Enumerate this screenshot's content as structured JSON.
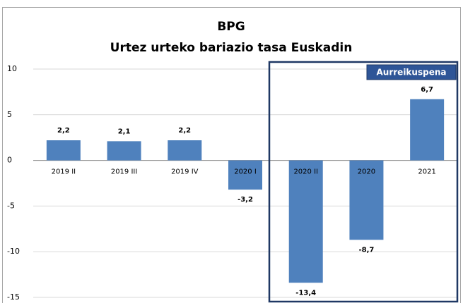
{
  "chart_data": {
    "type": "bar",
    "title": "BPG",
    "subtitle": "Urtez urteko bariazio tasa Euskadin",
    "categories": [
      "2019 II",
      "2019 III",
      "2019 IV",
      "2020 I",
      "2020 II",
      "2020",
      "2021"
    ],
    "values": [
      2.2,
      2.1,
      2.2,
      -3.2,
      -13.4,
      -8.7,
      6.7
    ],
    "value_labels": [
      "2,2",
      "2,1",
      "2,2",
      "-3,2",
      "-13,4",
      "-8,7",
      "6,7"
    ],
    "color": "#4f81bd",
    "ylim": [
      -15,
      10
    ],
    "yticks": [
      -15,
      -10,
      -5,
      0,
      5,
      10
    ],
    "grid": true,
    "annotation": "Aurreikuspena"
  }
}
